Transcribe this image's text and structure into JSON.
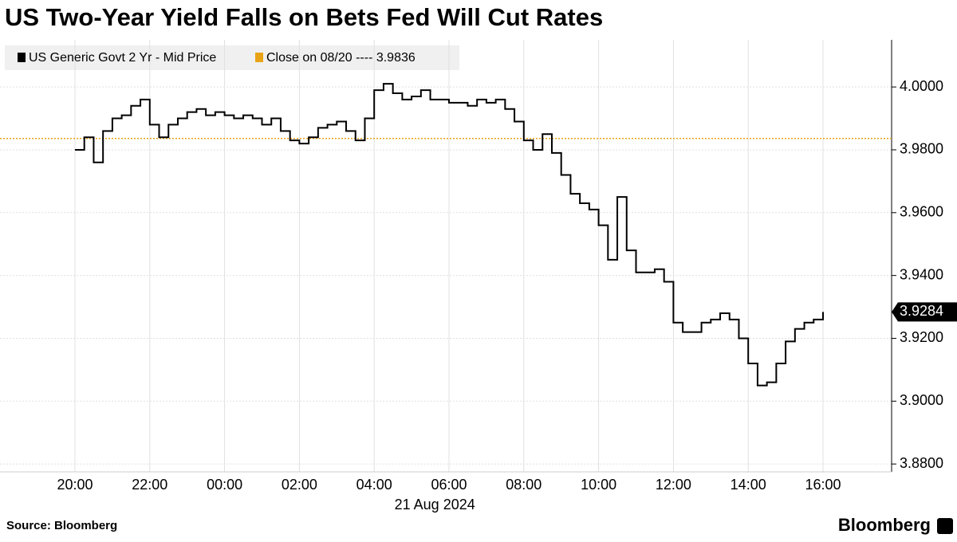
{
  "chart_data": {
    "type": "line",
    "title": "US Two-Year Yield Falls on Bets Fed Will Cut Rates",
    "source": "Source: Bloomberg",
    "brand": "Bloomberg",
    "x": [
      "20:00",
      "20:15",
      "20:30",
      "20:45",
      "21:00",
      "21:15",
      "21:30",
      "21:45",
      "22:00",
      "22:15",
      "22:30",
      "22:45",
      "23:00",
      "23:15",
      "23:30",
      "23:45",
      "00:00",
      "00:15",
      "00:30",
      "00:45",
      "01:00",
      "01:15",
      "01:30",
      "01:45",
      "02:00",
      "02:15",
      "02:30",
      "02:45",
      "03:00",
      "03:15",
      "03:30",
      "03:45",
      "04:00",
      "04:15",
      "04:30",
      "04:45",
      "05:00",
      "05:15",
      "05:30",
      "05:45",
      "06:00",
      "06:15",
      "06:30",
      "06:45",
      "07:00",
      "07:15",
      "07:30",
      "07:45",
      "08:00",
      "08:15",
      "08:30",
      "08:45",
      "09:00",
      "09:15",
      "09:30",
      "09:45",
      "10:00",
      "10:15",
      "10:30",
      "10:45",
      "11:00",
      "11:15",
      "11:30",
      "11:45",
      "12:00",
      "12:15",
      "12:30",
      "12:45",
      "13:00",
      "13:15",
      "13:30",
      "13:45",
      "14:00",
      "14:15",
      "14:30",
      "14:45",
      "15:00",
      "15:15",
      "15:30",
      "15:45",
      "16:00"
    ],
    "series": [
      {
        "name": "US Generic Govt 2 Yr - Mid Price",
        "color": "#000000",
        "values": [
          3.98,
          3.984,
          3.976,
          3.986,
          3.99,
          3.991,
          3.994,
          3.996,
          3.988,
          3.984,
          3.988,
          3.99,
          3.992,
          3.993,
          3.991,
          3.992,
          3.991,
          3.99,
          3.991,
          3.99,
          3.988,
          3.99,
          3.986,
          3.983,
          3.982,
          3.984,
          3.987,
          3.988,
          3.989,
          3.986,
          3.983,
          3.99,
          3.999,
          4.001,
          3.998,
          3.996,
          3.997,
          3.999,
          3.996,
          3.996,
          3.995,
          3.995,
          3.994,
          3.996,
          3.995,
          3.996,
          3.993,
          3.989,
          3.983,
          3.98,
          3.985,
          3.979,
          3.972,
          3.966,
          3.963,
          3.961,
          3.956,
          3.945,
          3.965,
          3.948,
          3.941,
          3.941,
          3.942,
          3.938,
          3.925,
          3.922,
          3.922,
          3.925,
          3.926,
          3.928,
          3.926,
          3.92,
          3.912,
          3.905,
          3.906,
          3.912,
          3.919,
          3.923,
          3.925,
          3.926,
          3.9284
        ],
        "last_label": "3.9284"
      }
    ],
    "reference": {
      "label": "Close on 08/20 ---- 3.9836",
      "value": 3.9836,
      "color": "#e8a317"
    },
    "xticks": [
      "20:00",
      "22:00",
      "00:00",
      "02:00",
      "04:00",
      "06:00",
      "08:00",
      "10:00",
      "12:00",
      "14:00",
      "16:00"
    ],
    "x_sublabel": {
      "at": "04:00",
      "label": "21 Aug 2024"
    },
    "ylim": [
      3.8775,
      4.015
    ],
    "yticks": [
      {
        "value": 3.88,
        "label": "3.8800"
      },
      {
        "value": 3.9,
        "label": "3.9000"
      },
      {
        "value": 3.92,
        "label": "3.9200"
      },
      {
        "value": 3.94,
        "label": "3.9400"
      },
      {
        "value": 3.96,
        "label": "3.9600"
      },
      {
        "value": 3.98,
        "label": "3.9800"
      },
      {
        "value": 4.0,
        "label": "4.0000"
      }
    ],
    "grid": true
  }
}
